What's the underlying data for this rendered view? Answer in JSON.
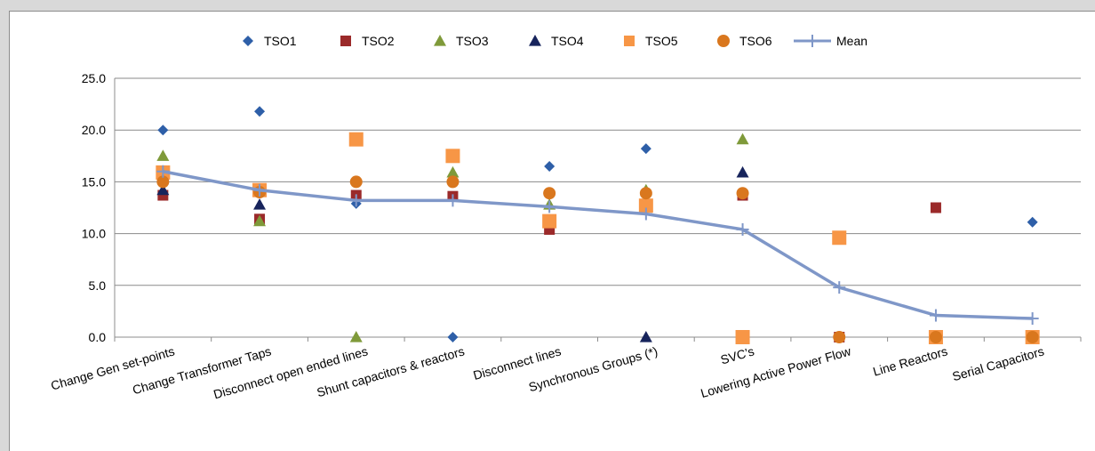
{
  "chart_data": {
    "type": "scatter",
    "categories": [
      "Change Gen set-points",
      "Change Transformer Taps",
      "Disconnect open ended lines",
      "Shunt capacitors & reactors",
      "Disconnect lines",
      "Synchronous Groups (*)",
      "SVC’s",
      "Lowering Active Power Flow",
      "Line Reactors",
      "Serial Capacitors"
    ],
    "ylim": [
      0,
      25
    ],
    "yticks": [
      "0.0",
      "5.0",
      "10.0",
      "15.0",
      "20.0",
      "25.0"
    ],
    "grid": true,
    "legend_position": "top",
    "series": [
      {
        "name": "TSO1",
        "marker": "diamond",
        "color": "#2e5fa8",
        "values": [
          20.0,
          21.8,
          12.9,
          0.0,
          16.5,
          18.2,
          null,
          null,
          null,
          11.1
        ]
      },
      {
        "name": "TSO2",
        "marker": "square",
        "color": "#9b2a2a",
        "values": [
          13.7,
          11.4,
          13.7,
          13.6,
          10.4,
          null,
          13.7,
          0.0,
          12.5,
          null
        ]
      },
      {
        "name": "TSO3",
        "marker": "triangle",
        "color": "#7f9a3a",
        "values": [
          17.5,
          11.2,
          0.0,
          15.9,
          12.8,
          14.2,
          19.1,
          null,
          null,
          null
        ]
      },
      {
        "name": "TSO4",
        "marker": "triangle",
        "color": "#17245c",
        "values": [
          14.2,
          12.8,
          null,
          null,
          null,
          0.0,
          15.9,
          null,
          null,
          null
        ]
      },
      {
        "name": "TSO5",
        "marker": "square-large",
        "color": "#f79646",
        "values": [
          15.9,
          14.2,
          19.1,
          17.5,
          11.2,
          12.7,
          0.0,
          9.6,
          0.0,
          0.0
        ]
      },
      {
        "name": "TSO6",
        "marker": "circle",
        "color": "#d9771e",
        "values": [
          15.0,
          14.0,
          15.0,
          15.0,
          13.9,
          13.9,
          13.9,
          0.0,
          0.0,
          0.0
        ]
      },
      {
        "name": "Mean",
        "marker": "line-plus",
        "color": "#7f97c8",
        "values": [
          16.0,
          14.2,
          13.2,
          13.2,
          12.6,
          11.9,
          10.4,
          4.8,
          2.1,
          1.8
        ]
      }
    ]
  }
}
